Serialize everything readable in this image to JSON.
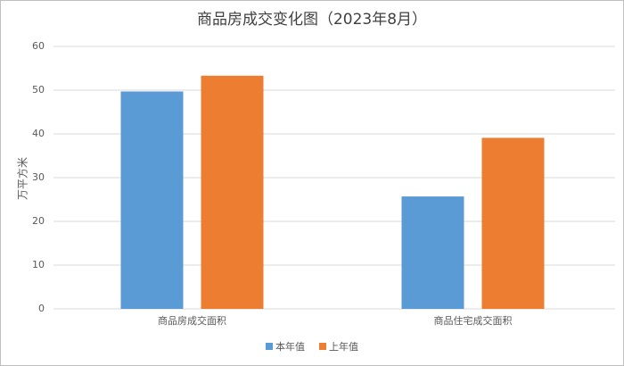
{
  "chart_data": {
    "type": "bar",
    "title": "商品房成交变化图（2023年8月）",
    "y_label": "万平方米",
    "categories": [
      "商品房成交面积",
      "商品住宅成交面积"
    ],
    "series": [
      {
        "name": "本年值",
        "color": "#5b9bd5",
        "values": [
          49.7,
          25.7
        ]
      },
      {
        "name": "上年值",
        "color": "#ed7d31",
        "values": [
          53.3,
          39.1
        ]
      }
    ],
    "ylim": [
      0,
      60
    ],
    "yticks": [
      0,
      10,
      20,
      30,
      40,
      50,
      60
    ],
    "grid": true,
    "legend": "bottom"
  }
}
